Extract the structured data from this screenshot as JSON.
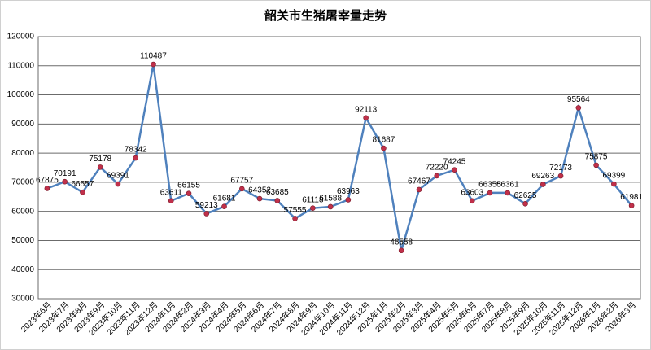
{
  "chart_data": {
    "type": "line",
    "title": "韶关市生猪屠宰量走势",
    "categories": [
      "2023年6月",
      "2023年7月",
      "2023年8月",
      "2023年9月",
      "2023年10月",
      "2023年11月",
      "2023年12月",
      "2024年1月",
      "2024年2月",
      "2024年3月",
      "2024年4月",
      "2024年5月",
      "2024年6月",
      "2024年7月",
      "2024年8月",
      "2024年9月",
      "2024年10月",
      "2024年11月",
      "2024年12月",
      "2025年1月",
      "2025年2月",
      "2025年3月",
      "2025年4月",
      "2025年5月",
      "2025年6月",
      "2025年7月",
      "2025年8月",
      "2025年9月",
      "2025年10月",
      "2025年11月",
      "2025年12月",
      "2026年1月",
      "2026年2月",
      "2026年3月"
    ],
    "values": [
      67875,
      70191,
      66557,
      75178,
      69391,
      78342,
      110487,
      63611,
      66155,
      59213,
      61681,
      67757,
      64352,
      63685,
      57555,
      61118,
      61588,
      63963,
      92113,
      81687,
      46558,
      67467,
      72220,
      74245,
      63603,
      66355,
      66361,
      62625,
      69263,
      72173,
      95564,
      75875,
      69399,
      61981
    ],
    "color": "#4f81bd",
    "marker_color": "#c0304a",
    "ylim": [
      30000,
      120000
    ],
    "yticks": [
      30000,
      40000,
      50000,
      60000,
      70000,
      80000,
      90000,
      100000,
      110000,
      120000
    ],
    "grid": true
  }
}
